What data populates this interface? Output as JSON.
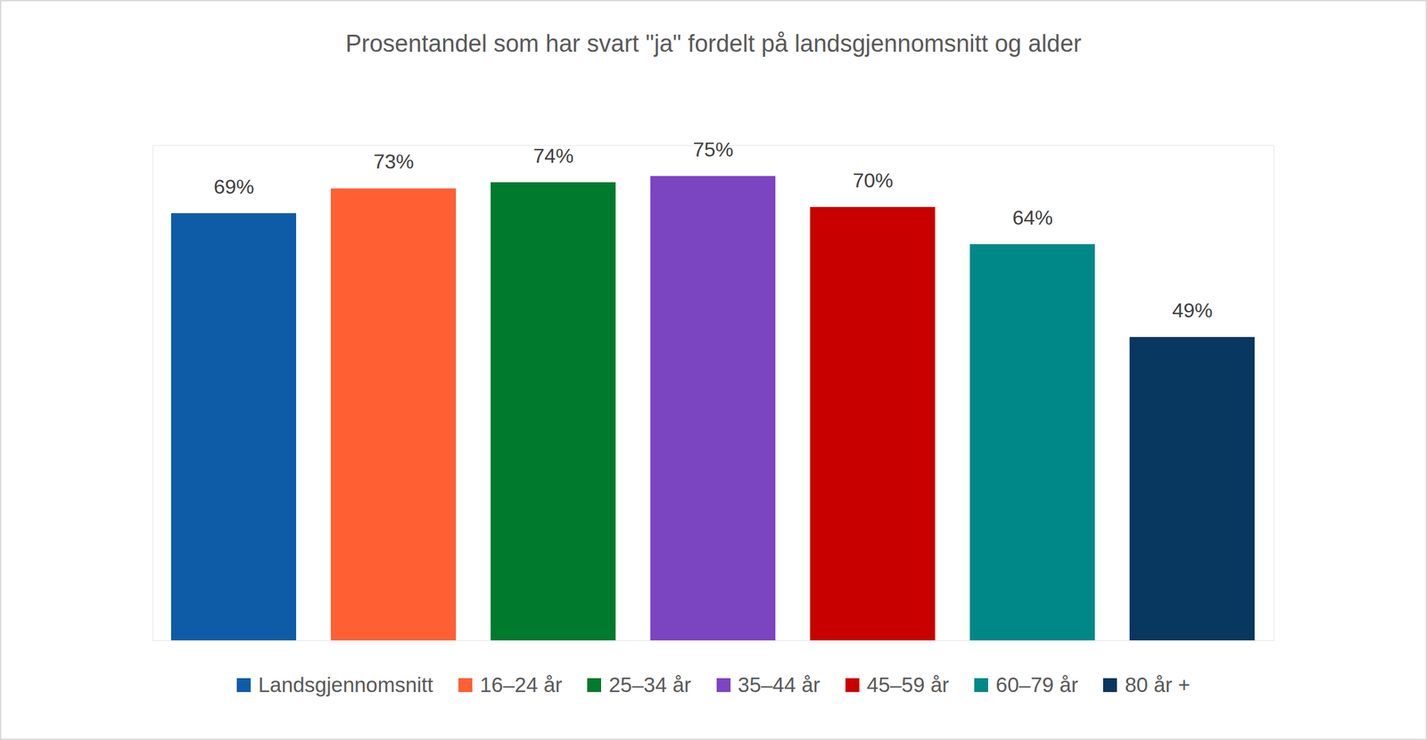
{
  "chart_data": {
    "type": "bar",
    "title": "Prosentandel som har svart \"ja\" fordelt på landsgjennomsnitt og alder",
    "categories": [
      "Landsgjennomsnitt",
      "16–24 år",
      "25–34 år",
      "35–44 år",
      "45–59 år",
      "60–79 år",
      "80 år +"
    ],
    "values": [
      69,
      73,
      74,
      75,
      70,
      64,
      49
    ],
    "value_labels": [
      "69%",
      "73%",
      "74%",
      "75%",
      "70%",
      "64%",
      "49%"
    ],
    "colors": [
      "#0e5ca8",
      "#ff5f33",
      "#007a2d",
      "#7b45c2",
      "#c80000",
      "#008888",
      "#08375f"
    ],
    "ylim": [
      0,
      80
    ],
    "yticks": [],
    "grid": false,
    "tick_labels": false,
    "data_labels": true,
    "legend": "bottom"
  }
}
